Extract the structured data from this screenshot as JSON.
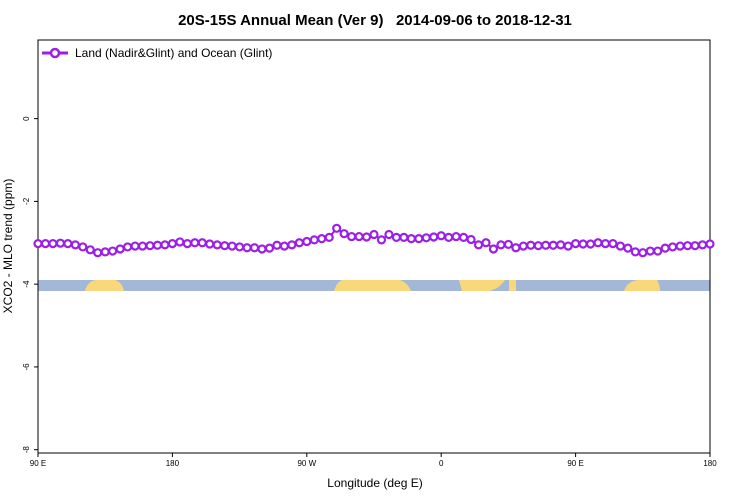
{
  "chart_data": {
    "type": "line",
    "title": "20S-15S Annual Mean (Ver 9)   2014-09-06 to 2018-12-31",
    "x_label": "Longitude (deg E)",
    "y_label": "XCO2 - MLO trend (ppm)",
    "x": [
      90,
      95,
      100,
      105,
      110,
      115,
      120,
      125,
      130,
      135,
      140,
      145,
      150,
      155,
      160,
      165,
      170,
      175,
      180,
      185,
      190,
      195,
      200,
      205,
      210,
      215,
      220,
      225,
      230,
      235,
      240,
      245,
      250,
      255,
      260,
      265,
      270,
      275,
      280,
      285,
      290,
      295,
      300,
      305,
      310,
      315,
      320,
      325,
      330,
      335,
      340,
      345,
      350,
      355,
      360,
      365,
      370,
      375,
      380,
      385,
      390,
      395,
      400,
      405,
      410,
      415,
      420,
      425,
      430,
      435,
      440,
      445,
      450,
      455,
      460,
      465,
      470,
      475,
      480,
      485,
      490,
      495,
      500,
      505,
      510,
      515,
      520,
      525,
      530,
      535,
      540
    ],
    "series": [
      {
        "name": "Land (Nadir&Glint) and Ocean (Glint)",
        "color": "#9b1fe8",
        "values": [
          -3.02,
          -3.02,
          -3.02,
          -3.01,
          -3.02,
          -3.05,
          -3.1,
          -3.17,
          -3.24,
          -3.22,
          -3.2,
          -3.15,
          -3.1,
          -3.08,
          -3.08,
          -3.07,
          -3.06,
          -3.05,
          -3.02,
          -2.98,
          -3.02,
          -3.0,
          -3.0,
          -3.03,
          -3.05,
          -3.07,
          -3.08,
          -3.1,
          -3.12,
          -3.12,
          -3.15,
          -3.13,
          -3.06,
          -3.08,
          -3.05,
          -3.0,
          -2.97,
          -2.93,
          -2.9,
          -2.87,
          -2.65,
          -2.78,
          -2.85,
          -2.85,
          -2.86,
          -2.8,
          -2.93,
          -2.8,
          -2.87,
          -2.87,
          -2.9,
          -2.9,
          -2.88,
          -2.86,
          -2.83,
          -2.87,
          -2.85,
          -2.87,
          -2.92,
          -3.05,
          -3.0,
          -3.15,
          -3.05,
          -3.04,
          -3.12,
          -3.08,
          -3.06,
          -3.07,
          -3.06,
          -3.06,
          -3.05,
          -3.08,
          -3.02,
          -3.03,
          -3.03,
          -3.0,
          -3.02,
          -3.02,
          -3.08,
          -3.13,
          -3.22,
          -3.24,
          -3.2,
          -3.2,
          -3.13,
          -3.1,
          -3.08,
          -3.07,
          -3.07,
          -3.05,
          -3.03
        ]
      }
    ],
    "xlim": [
      90,
      540
    ],
    "xticks": [
      {
        "value": 90,
        "label": "90 E"
      },
      {
        "value": 180,
        "label": "180"
      },
      {
        "value": 270,
        "label": "90 W"
      },
      {
        "value": 360,
        "label": "0"
      },
      {
        "value": 450,
        "label": "90 E"
      },
      {
        "value": 540,
        "label": "180"
      }
    ],
    "ylim": [
      -8.08,
      1.9
    ],
    "yticks": [
      0,
      -2,
      -4,
      -6,
      -8
    ],
    "legend": "top-left"
  }
}
